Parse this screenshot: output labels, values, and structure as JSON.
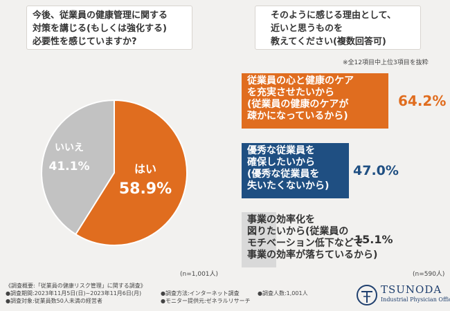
{
  "question1": {
    "lines": [
      "今後、従業員の健康管理に関する",
      "対策を講じる(もしくは強化する)",
      "必要性を感じていますか?"
    ]
  },
  "question2": {
    "lines": [
      "そのように感じる理由として、",
      "近いと思うものを",
      "教えてください(複数回答可)"
    ]
  },
  "top_note": "※全12項目中上位3項目を抜粋",
  "n_left": "(n=1,001人)",
  "n_right": "(n=590人)",
  "chart_data": [
    {
      "type": "pie",
      "title": "今後、従業員の健康管理に関する対策を講じる(もしくは強化する)必要性を感じていますか?",
      "slices": [
        {
          "label": "はい",
          "value": 58.9,
          "value_text": "58.9%",
          "color": "#e06d1f"
        },
        {
          "label": "いいえ",
          "value": 41.1,
          "value_text": "41.1%",
          "color": "#c2c2c2"
        }
      ]
    },
    {
      "type": "bar",
      "title": "そのように感じる理由として、近いと思うものを教えてください(複数回答可)",
      "xlim": [
        0,
        100
      ],
      "bars": [
        {
          "lines": [
            "従業員の心と健康のケア",
            "を充実させたいから",
            "(従業員の健康のケアが",
            "疎かになっているから)"
          ],
          "value": 64.2,
          "value_text": "64.2%",
          "color": "#e06d1f",
          "text_color": "#ffffff",
          "value_color": "#e06d1f"
        },
        {
          "lines": [
            "優秀な従業員を",
            "確保したいから",
            "(優秀な従業員を",
            "失いたくないから)"
          ],
          "value": 47.0,
          "value_text": "47.0%",
          "color": "#1f4f82",
          "text_color": "#ffffff",
          "value_color": "#1f4f82"
        },
        {
          "lines": [
            "事業の効率化を",
            "図りたいから(従業員の",
            "モチベーション低下などで",
            "事業の効率が落ちているから)"
          ],
          "value": 15.1,
          "value_text": "15.1%",
          "color": "#d9d9d9",
          "text_color": "#333333",
          "value_color": "#333333"
        }
      ]
    }
  ],
  "footer": {
    "left": [
      "《調査概要:「従業員の健康リスク管理」に関する調査》",
      "●調査期間:2023年11月5日(日)~2023年11月6日(月)",
      "●調査対象:従業員数50人未満の経営者"
    ],
    "mid": [
      "●調査方法:インターネット調査",
      "●モニター提供元:ゼネラルリサーチ"
    ],
    "mid2": [
      "●調査人数:1,001人"
    ]
  },
  "logo": {
    "name": "TSUNODA",
    "sub": "Industrial Physician Office",
    "color": "#1f3f6e"
  }
}
